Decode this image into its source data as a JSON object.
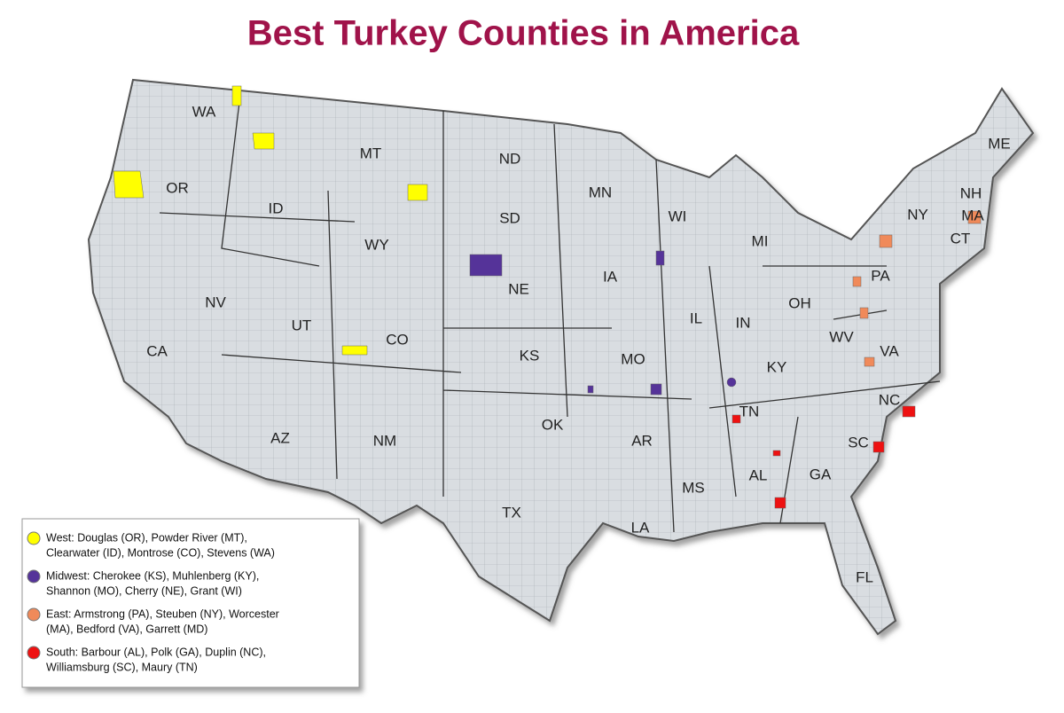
{
  "title": "Best Turkey Counties in America",
  "states": [
    "WA",
    "OR",
    "CA",
    "NV",
    "ID",
    "MT",
    "WY",
    "UT",
    "CO",
    "AZ",
    "NM",
    "ND",
    "SD",
    "NE",
    "KS",
    "OK",
    "TX",
    "MN",
    "IA",
    "MO",
    "AR",
    "LA",
    "WI",
    "IL",
    "MS",
    "MI",
    "IN",
    "KY",
    "TN",
    "AL",
    "GA",
    "FL",
    "OH",
    "WV",
    "VA",
    "NC",
    "SC",
    "PA",
    "NY",
    "ME",
    "NH",
    "MA",
    "CT"
  ],
  "legend": [
    {
      "color": "#ffff00",
      "lines": [
        "West: Douglas (OR), Powder River (MT),",
        "Clearwater (ID), Montrose (CO), Stevens (WA)"
      ]
    },
    {
      "color": "#553399",
      "lines": [
        "Midwest: Cherokee (KS), Muhlenberg (KY),",
        "Shannon (MO), Cherry (NE), Grant (WI)"
      ]
    },
    {
      "color": "#f08a5a",
      "lines": [
        "East: Armstrong (PA), Steuben (NY), Worcester",
        "(MA), Bedford (VA), Garrett (MD)"
      ]
    },
    {
      "color": "#ee1111",
      "lines": [
        "South: Barbour (AL), Polk (GA), Duplin (NC),",
        "Williamsburg (SC), Maury (TN)"
      ]
    }
  ]
}
